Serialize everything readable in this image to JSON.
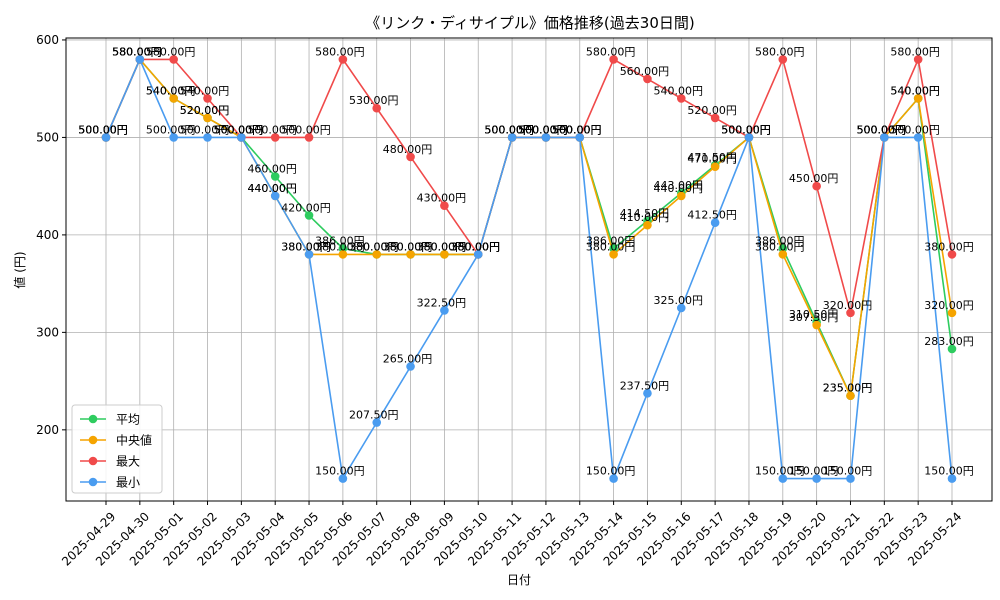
{
  "chart_data": {
    "type": "line",
    "title": "《リンク・ディサイプル》価格推移(過去30日間)",
    "xlabel": "日付",
    "ylabel": "値 (円)",
    "ylim": [
      127,
      602
    ],
    "yticks": [
      200,
      300,
      400,
      500,
      600
    ],
    "grid": true,
    "legend_position": "lower-left",
    "value_suffix": "円",
    "x": [
      "2025-04-29",
      "2025-04-30",
      "2025-05-01",
      "2025-05-02",
      "2025-05-03",
      "2025-05-04",
      "2025-05-05",
      "2025-05-06",
      "2025-05-07",
      "2025-05-08",
      "2025-05-09",
      "2025-05-10",
      "2025-05-11",
      "2025-05-12",
      "2025-05-13",
      "2025-05-14",
      "2025-05-15",
      "2025-05-16",
      "2025-05-17",
      "2025-05-18",
      "2025-05-19",
      "2025-05-20",
      "2025-05-21",
      "2025-05-22",
      "2025-05-23",
      "2025-05-24"
    ],
    "series": [
      {
        "name": "平均",
        "color": "#2ecc5f",
        "values": [
          500,
          580,
          540,
          520,
          500,
          460,
          420,
          386,
          380,
          380,
          380,
          380,
          500,
          500,
          500,
          386,
          414.5,
          443,
          471.5,
          500,
          386,
          310.5,
          235,
          500,
          540,
          283
        ]
      },
      {
        "name": "中央値",
        "color": "#f5a400",
        "values": [
          500,
          580,
          540,
          520,
          500,
          440,
          380,
          380,
          380,
          380,
          380,
          380,
          500,
          500,
          500,
          380,
          410,
          440,
          470,
          500,
          380,
          307.5,
          235,
          500,
          540,
          320
        ]
      },
      {
        "name": "最大",
        "color": "#f04a4a",
        "values": [
          500,
          580,
          580,
          540,
          500,
          500,
          500,
          580,
          530,
          480,
          430,
          380,
          500,
          500,
          500,
          580,
          560,
          540,
          520,
          500,
          580,
          450,
          320,
          500,
          580,
          380
        ]
      },
      {
        "name": "最小",
        "color": "#4a9cf0",
        "values": [
          500,
          580,
          500,
          500,
          500,
          440,
          380,
          150,
          207.5,
          265,
          322.5,
          380,
          500,
          500,
          500,
          150,
          237.5,
          325,
          412.5,
          500,
          150,
          150,
          150,
          500,
          500,
          150
        ]
      }
    ]
  }
}
